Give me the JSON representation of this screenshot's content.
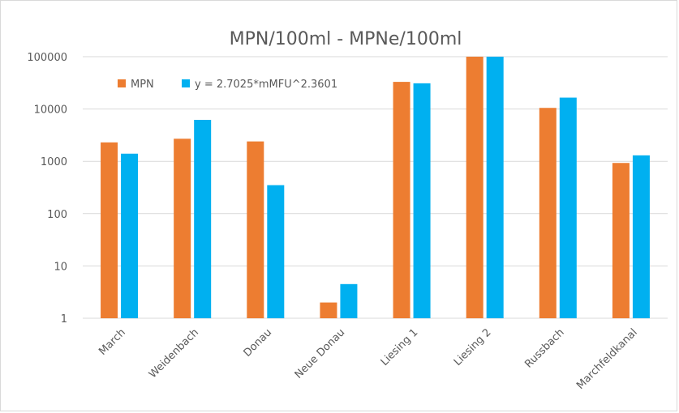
{
  "chart_data": {
    "type": "bar",
    "title": "MPN/100ml - MPNe/100ml",
    "xlabel": "",
    "ylabel": "",
    "yscale": "log",
    "ylim": [
      1,
      100000
    ],
    "yticks": [
      "1",
      "10",
      "100",
      "1000",
      "10000",
      "100000"
    ],
    "grid": true,
    "legend_position": "top-left",
    "categories": [
      "March",
      "Weidenbach",
      "Donau",
      "Neue Donau",
      "Liesing 1",
      "Liesing 2",
      "Russbach",
      "Marchfeldkanal"
    ],
    "series": [
      {
        "name": "MPN",
        "color": "#ed7d31",
        "values": [
          2300,
          2700,
          2400,
          2,
          33000,
          100000,
          10500,
          930
        ]
      },
      {
        "name": "y = 2.7025*mMFU^2.3601",
        "color": "#00b0f0",
        "values": [
          1400,
          6200,
          350,
          4.5,
          31000,
          100000,
          16500,
          1300
        ]
      }
    ]
  }
}
